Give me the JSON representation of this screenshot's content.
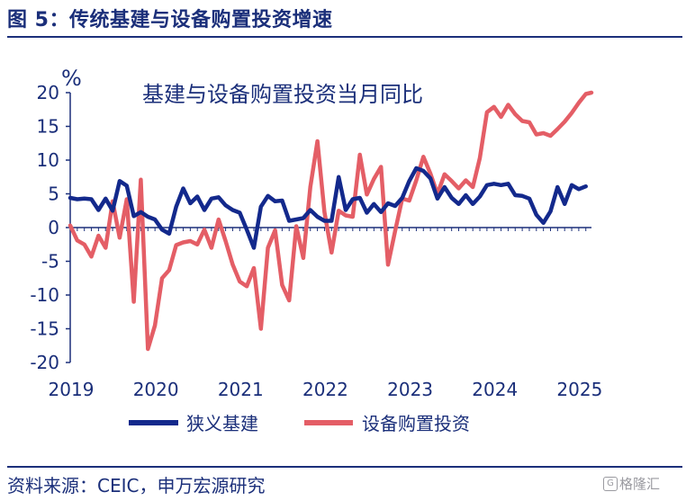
{
  "figure_title": "图 5：传统基建与设备购置投资增速",
  "source_note": "资料来源：CEIC，申万宏源研究",
  "watermark": {
    "icon_text": "G",
    "text": "格隆汇"
  },
  "colors": {
    "series1": "#13298c",
    "series2": "#e45e66",
    "text": "#1b2f7a",
    "axis": "#1b2f7a"
  },
  "chart_data": {
    "type": "line",
    "title": "基建与设备购置投资当月同比",
    "ylabel": "%",
    "xlabel": "",
    "ylim": [
      -20,
      20
    ],
    "yticks": [
      20,
      15,
      10,
      5,
      0,
      -5,
      -10,
      -15,
      -20
    ],
    "xlim": [
      2019.0,
      2025.15
    ],
    "xticks": [
      2019,
      2020,
      2021,
      2022,
      2023,
      2024,
      2025
    ],
    "xtick_labels": [
      "2019",
      "2020",
      "2021",
      "2022",
      "2023",
      "2024",
      "2025"
    ],
    "legend_position": "bottom",
    "series": [
      {
        "name": "狭义基建",
        "color": "#13298c",
        "x": [
          2019.0,
          2019.083,
          2019.167,
          2019.25,
          2019.333,
          2019.417,
          2019.5,
          2019.583,
          2019.667,
          2019.75,
          2019.833,
          2019.917,
          2020.0,
          2020.083,
          2020.167,
          2020.25,
          2020.333,
          2020.417,
          2020.5,
          2020.583,
          2020.667,
          2020.75,
          2020.833,
          2020.917,
          2021.0,
          2021.083,
          2021.167,
          2021.25,
          2021.333,
          2021.417,
          2021.5,
          2021.583,
          2021.667,
          2021.75,
          2021.833,
          2021.917,
          2022.0,
          2022.083,
          2022.167,
          2022.25,
          2022.333,
          2022.417,
          2022.5,
          2022.583,
          2022.667,
          2022.75,
          2022.833,
          2022.917,
          2023.0,
          2023.083,
          2023.167,
          2023.25,
          2023.333,
          2023.417,
          2023.5,
          2023.583,
          2023.667,
          2023.75,
          2023.833,
          2023.917,
          2024.0,
          2024.083,
          2024.167,
          2024.25,
          2024.333,
          2024.417,
          2024.5,
          2024.583,
          2024.667,
          2024.75,
          2024.833,
          2024.917,
          2025.0,
          2025.083
        ],
        "values": [
          4.4,
          4.2,
          4.3,
          4.2,
          2.6,
          4.3,
          2.5,
          6.9,
          6.2,
          1.7,
          2.3,
          1.6,
          1.2,
          -0.3,
          -0.9,
          3.1,
          5.8,
          3.6,
          4.6,
          2.6,
          4.3,
          4.5,
          3.3,
          2.6,
          2.2,
          -0.3,
          -3.0,
          3.1,
          4.7,
          3.9,
          4.0,
          1.0,
          1.2,
          1.4,
          2.6,
          1.6,
          1.0,
          1.0,
          7.5,
          2.6,
          4.2,
          4.4,
          2.2,
          3.5,
          2.3,
          3.6,
          3.2,
          4.4,
          6.9,
          8.8,
          8.4,
          7.3,
          4.3,
          6.0,
          4.4,
          3.5,
          4.8,
          3.5,
          4.6,
          6.3,
          6.5,
          6.3,
          6.5,
          4.8,
          4.7,
          4.3,
          1.9,
          0.7,
          2.4,
          6.0,
          3.5,
          6.3,
          5.7,
          6.1
        ]
      },
      {
        "name": "设备购置投资",
        "color": "#e45e66",
        "x": [
          2019.0,
          2019.083,
          2019.167,
          2019.25,
          2019.333,
          2019.417,
          2019.5,
          2019.583,
          2019.667,
          2019.75,
          2019.833,
          2019.917,
          2020.0,
          2020.083,
          2020.167,
          2020.25,
          2020.333,
          2020.417,
          2020.5,
          2020.583,
          2020.667,
          2020.75,
          2020.833,
          2020.917,
          2021.0,
          2021.083,
          2021.167,
          2021.25,
          2021.333,
          2021.417,
          2021.5,
          2021.583,
          2021.667,
          2021.75,
          2021.833,
          2021.917,
          2022.0,
          2022.083,
          2022.167,
          2022.25,
          2022.333,
          2022.417,
          2022.5,
          2022.583,
          2022.667,
          2022.75,
          2022.833,
          2022.917,
          2023.0,
          2023.083,
          2023.167,
          2023.25,
          2023.333,
          2023.417,
          2023.5,
          2023.583,
          2023.667,
          2023.75,
          2023.833,
          2023.917,
          2024.0,
          2024.083,
          2024.167,
          2024.25,
          2024.333,
          2024.417,
          2024.5,
          2024.583,
          2024.667,
          2024.75,
          2024.833,
          2024.917,
          2025.0,
          2025.083,
          2025.15
        ],
        "values": [
          0.3,
          -1.9,
          -2.5,
          -4.3,
          -1.2,
          -3.0,
          3.9,
          -1.5,
          4.2,
          -11.0,
          7.1,
          -18.0,
          -14.5,
          -7.5,
          -6.3,
          -2.6,
          -2.2,
          -2.0,
          -2.5,
          -0.3,
          -3.0,
          1.2,
          -2.0,
          -5.5,
          -8.0,
          -8.7,
          -6.0,
          -15.0,
          -3.0,
          -0.4,
          -8.5,
          -10.8,
          0.2,
          -4.5,
          6.0,
          12.8,
          2.3,
          -3.7,
          2.5,
          1.8,
          1.6,
          10.8,
          4.9,
          7.2,
          9.0,
          -5.5,
          -0.5,
          4.3,
          4.0,
          7.0,
          10.5,
          8.0,
          5.0,
          7.9,
          6.9,
          5.8,
          7.0,
          6.0,
          10.3,
          17.1,
          17.9,
          16.4,
          18.2,
          16.8,
          15.8,
          15.6,
          13.8,
          14.0,
          13.6,
          14.6,
          15.7,
          17.0,
          18.5,
          19.8,
          20.0
        ]
      }
    ]
  }
}
